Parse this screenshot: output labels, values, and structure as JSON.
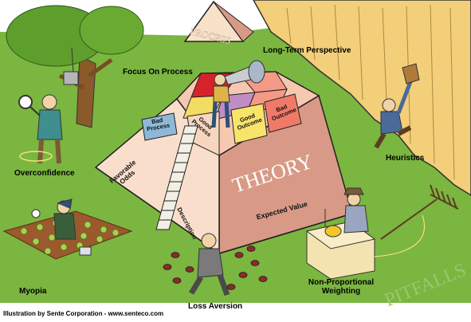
{
  "labels": {
    "process_cap": "PROCESS",
    "long_term": "Long-Term Perspective",
    "focus_process": "Focus On Process",
    "theory": "THEORY",
    "expected_value": "Expected Value",
    "bad_process": "Bad Process",
    "good_process": "Good Process",
    "good_outcome": "Good Outcome",
    "bad_outcome": "Bad Outcome",
    "favorable_odds": "Favorable Odds",
    "description": "Description",
    "overconfidence": "Overconfidence",
    "heuristics": "Heuristics",
    "myopia": "Myopia",
    "loss_aversion": "Loss Aversion",
    "non_proportional": "Non-Proportional Weighting",
    "pitfalls": "PITFALLS"
  },
  "credit": "Illustration by Sente Corporation - www.senteco.com",
  "colors": {
    "cliff": "#f3cf79",
    "grass": "#7bb640",
    "pyramid_left": "#f9dfcb",
    "pyramid_right": "#d89a86",
    "cap": "#f7e1c7",
    "top_red": "#d6232b",
    "top_yellow": "#f3dc62",
    "top_peach": "#f49a86",
    "top_green": "#a6cd6f",
    "top_purple": "#c28cc4",
    "bad_process_tile": "#8fb8d8",
    "good_outcome_tile": "#f8e46a",
    "bad_outcome_tile": "#f07a68",
    "theory_text": "#ffffff",
    "pitfalls_text": "#9bc76e"
  }
}
